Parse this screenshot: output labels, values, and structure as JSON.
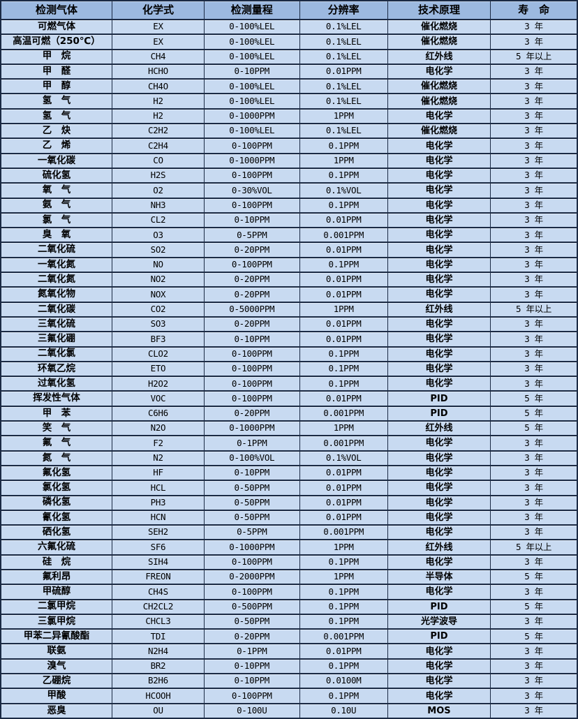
{
  "colors": {
    "header_bg": "#9cb9e0",
    "row_bg": "#c8daf1",
    "border": "#1b2a44",
    "text": "#000000"
  },
  "table": {
    "headers": [
      "检测气体",
      "化学式",
      "检测量程",
      "分辨率",
      "技术原理",
      "寿　命"
    ],
    "column_keys": [
      "gas",
      "formula",
      "range",
      "resolution",
      "principle",
      "lifespan"
    ],
    "rows": [
      [
        "可燃气体",
        "EX",
        "0-100%LEL",
        "0.1%LEL",
        "催化燃烧",
        "3 年"
      ],
      [
        "高温可燃（250℃）",
        "EX",
        "0-100%LEL",
        "0.1%LEL",
        "催化燃烧",
        "3 年"
      ],
      [
        "甲　烷",
        "CH4",
        "0-100%LEL",
        "0.1%LEL",
        "红外线",
        "5 年以上"
      ],
      [
        "甲　醛",
        "HCHO",
        "0-10PPM",
        "0.01PPM",
        "电化学",
        "3 年"
      ],
      [
        "甲　醇",
        "CH4O",
        "0-100%LEL",
        "0.1%LEL",
        "催化燃烧",
        "3 年"
      ],
      [
        "氢　气",
        "H2",
        "0-100%LEL",
        "0.1%LEL",
        "催化燃烧",
        "3 年"
      ],
      [
        "氢　气",
        "H2",
        "0-1000PPM",
        "1PPM",
        "电化学",
        "3 年"
      ],
      [
        "乙　炔",
        "C2H2",
        "0-100%LEL",
        "0.1%LEL",
        "催化燃烧",
        "3 年"
      ],
      [
        "乙　烯",
        "C2H4",
        "0-100PPM",
        "0.1PPM",
        "电化学",
        "3 年"
      ],
      [
        "一氧化碳",
        "CO",
        "0-1000PPM",
        "1PPM",
        "电化学",
        "3 年"
      ],
      [
        "硫化氢",
        "H2S",
        "0-100PPM",
        "0.1PPM",
        "电化学",
        "3 年"
      ],
      [
        "氧　气",
        "O2",
        "0-30%VOL",
        "0.1%VOL",
        "电化学",
        "3 年"
      ],
      [
        "氨　气",
        "NH3",
        "0-100PPM",
        "0.1PPM",
        "电化学",
        "3 年"
      ],
      [
        "氯　气",
        "CL2",
        "0-10PPM",
        "0.01PPM",
        "电化学",
        "3 年"
      ],
      [
        "臭　氧",
        "O3",
        "0-5PPM",
        "0.001PPM",
        "电化学",
        "3 年"
      ],
      [
        "二氧化硫",
        "SO2",
        "0-20PPM",
        "0.01PPM",
        "电化学",
        "3 年"
      ],
      [
        "一氧化氮",
        "NO",
        "0-100PPM",
        "0.1PPM",
        "电化学",
        "3 年"
      ],
      [
        "二氧化氮",
        "NO2",
        "0-20PPM",
        "0.01PPM",
        "电化学",
        "3 年"
      ],
      [
        "氮氧化物",
        "NOX",
        "0-20PPM",
        "0.01PPM",
        "电化学",
        "3 年"
      ],
      [
        "二氧化碳",
        "CO2",
        "0-5000PPM",
        "1PPM",
        "红外线",
        "5 年以上"
      ],
      [
        "三氧化硫",
        "SO3",
        "0-20PPM",
        "0.01PPM",
        "电化学",
        "3 年"
      ],
      [
        "三氟化硼",
        "BF3",
        "0-10PPM",
        "0.01PPM",
        "电化学",
        "3 年"
      ],
      [
        "二氧化氯",
        "CLO2",
        "0-100PPM",
        "0.1PPM",
        "电化学",
        "3 年"
      ],
      [
        "环氧乙烷",
        "ETO",
        "0-100PPM",
        "0.1PPM",
        "电化学",
        "3 年"
      ],
      [
        "过氧化氢",
        "H2O2",
        "0-100PPM",
        "0.1PPM",
        "电化学",
        "3 年"
      ],
      [
        "挥发性气体",
        "VOC",
        "0-100PPM",
        "0.01PPM",
        "PID",
        "5 年"
      ],
      [
        "甲　苯",
        "C6H6",
        "0-20PPM",
        "0.001PPM",
        "PID",
        "5 年"
      ],
      [
        "笑　气",
        "N2O",
        "0-1000PPM",
        "1PPM",
        "红外线",
        "5 年"
      ],
      [
        "氟　气",
        "F2",
        "0-1PPM",
        "0.001PPM",
        "电化学",
        "3 年"
      ],
      [
        "氮　气",
        "N2",
        "0-100%VOL",
        "0.1%VOL",
        "电化学",
        "3 年"
      ],
      [
        "氟化氢",
        "HF",
        "0-10PPM",
        "0.01PPM",
        "电化学",
        "3 年"
      ],
      [
        "氯化氢",
        "HCL",
        "0-50PPM",
        "0.01PPM",
        "电化学",
        "3 年"
      ],
      [
        "磷化氢",
        "PH3",
        "0-50PPM",
        "0.01PPM",
        "电化学",
        "3 年"
      ],
      [
        "氰化氢",
        "HCN",
        "0-50PPM",
        "0.01PPM",
        "电化学",
        "3 年"
      ],
      [
        "硒化氢",
        "SEH2",
        "0-5PPM",
        "0.001PPM",
        "电化学",
        "3 年"
      ],
      [
        "六氟化硫",
        "SF6",
        "0-1000PPM",
        "1PPM",
        "红外线",
        "5 年以上"
      ],
      [
        "硅　烷",
        "SIH4",
        "0-100PPM",
        "0.1PPM",
        "电化学",
        "3 年"
      ],
      [
        "氟利昂",
        "FREON",
        "0-2000PPM",
        "1PPM",
        "半导体",
        "5 年"
      ],
      [
        "甲硫醇",
        "CH4S",
        "0-100PPM",
        "0.1PPM",
        "电化学",
        "3 年"
      ],
      [
        "二氯甲烷",
        "CH2CL2",
        "0-500PPM",
        "0.1PPM",
        "PID",
        "5 年"
      ],
      [
        "三氯甲烷",
        "CHCL3",
        "0-50PPM",
        "0.1PPM",
        "光学波导",
        "3 年"
      ],
      [
        "甲苯二异氰酸酯",
        "TDI",
        "0-20PPM",
        "0.001PPM",
        "PID",
        "5 年"
      ],
      [
        "联氨",
        "N2H4",
        "0-1PPM",
        "0.01PPM",
        "电化学",
        "3 年"
      ],
      [
        "溴气",
        "BR2",
        "0-10PPM",
        "0.1PPM",
        "电化学",
        "3 年"
      ],
      [
        "乙硼烷",
        "B2H6",
        "0-10PPM",
        "0.0100M",
        "电化学",
        "3 年"
      ],
      [
        "甲酸",
        "HCOOH",
        "0-100PPM",
        "0.1PPM",
        "电化学",
        "3 年"
      ],
      [
        "恶臭",
        "OU",
        "0-100U",
        "0.10U",
        "MOS",
        "3 年"
      ]
    ]
  }
}
